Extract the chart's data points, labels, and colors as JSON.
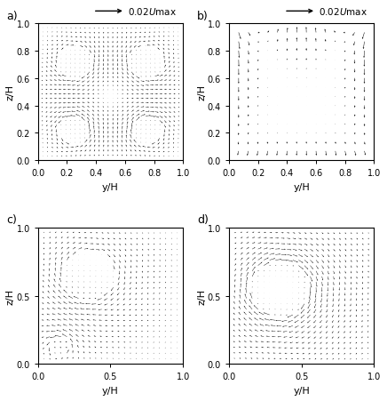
{
  "xlabel": "y/H",
  "ylabel": "z/H",
  "xlim": [
    0.0,
    1.0
  ],
  "ylim": [
    0.0,
    1.0
  ],
  "bg": "#ffffff",
  "arrow_color": "#000000",
  "fig_width": 4.36,
  "fig_height": 4.52,
  "panels": [
    "a)",
    "b)",
    "c)",
    "d)"
  ],
  "xticks_ab": [
    0.0,
    0.2,
    0.4,
    0.6,
    0.8,
    1.0
  ],
  "yticks_ab": [
    0.0,
    0.2,
    0.4,
    0.6,
    0.8,
    1.0
  ],
  "xticks_cd": [
    0.0,
    0.5,
    1.0
  ],
  "yticks_cd": [
    0.0,
    0.5,
    1.0
  ]
}
